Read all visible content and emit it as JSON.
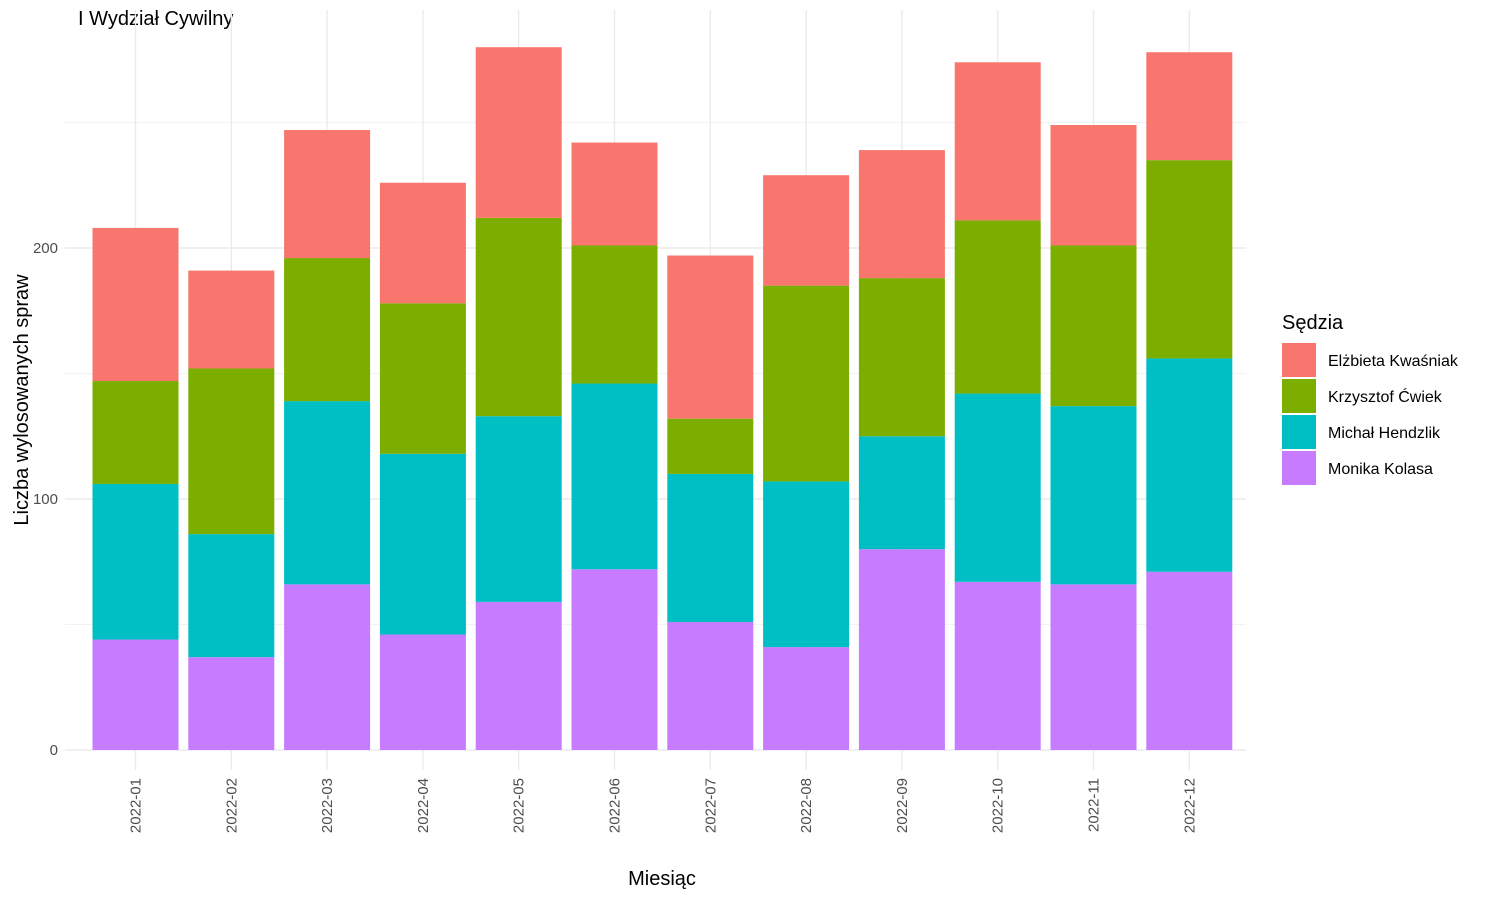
{
  "chart_data": {
    "type": "bar",
    "stacked": true,
    "title": "I Wydział Cywilny",
    "xlabel": "Miesiąc",
    "ylabel": "Liczba wylosowanych spraw",
    "ylim": [
      0,
      285
    ],
    "yticks": [
      0,
      100,
      200
    ],
    "grid": true,
    "legend_title": "Sędzia",
    "legend_position": "right",
    "categories": [
      "2022-01",
      "2022-02",
      "2022-03",
      "2022-04",
      "2022-05",
      "2022-06",
      "2022-07",
      "2022-08",
      "2022-09",
      "2022-10",
      "2022-11",
      "2022-12"
    ],
    "series": [
      {
        "name": "Elżbieta Kwaśniak",
        "color": "#F8766D",
        "values": [
          61,
          39,
          51,
          48,
          68,
          41,
          65,
          44,
          51,
          63,
          48,
          43
        ]
      },
      {
        "name": "Krzysztof Ćwiek",
        "color": "#7CAE00",
        "values": [
          41,
          66,
          57,
          60,
          79,
          55,
          22,
          78,
          63,
          69,
          64,
          79
        ]
      },
      {
        "name": "Michał Hendzlik",
        "color": "#00BFC4",
        "values": [
          62,
          49,
          73,
          72,
          74,
          74,
          59,
          66,
          45,
          75,
          71,
          85
        ]
      },
      {
        "name": "Monika Kolasa",
        "color": "#C77CFF",
        "values": [
          44,
          37,
          66,
          46,
          59,
          72,
          51,
          41,
          80,
          67,
          66,
          71
        ]
      }
    ]
  }
}
